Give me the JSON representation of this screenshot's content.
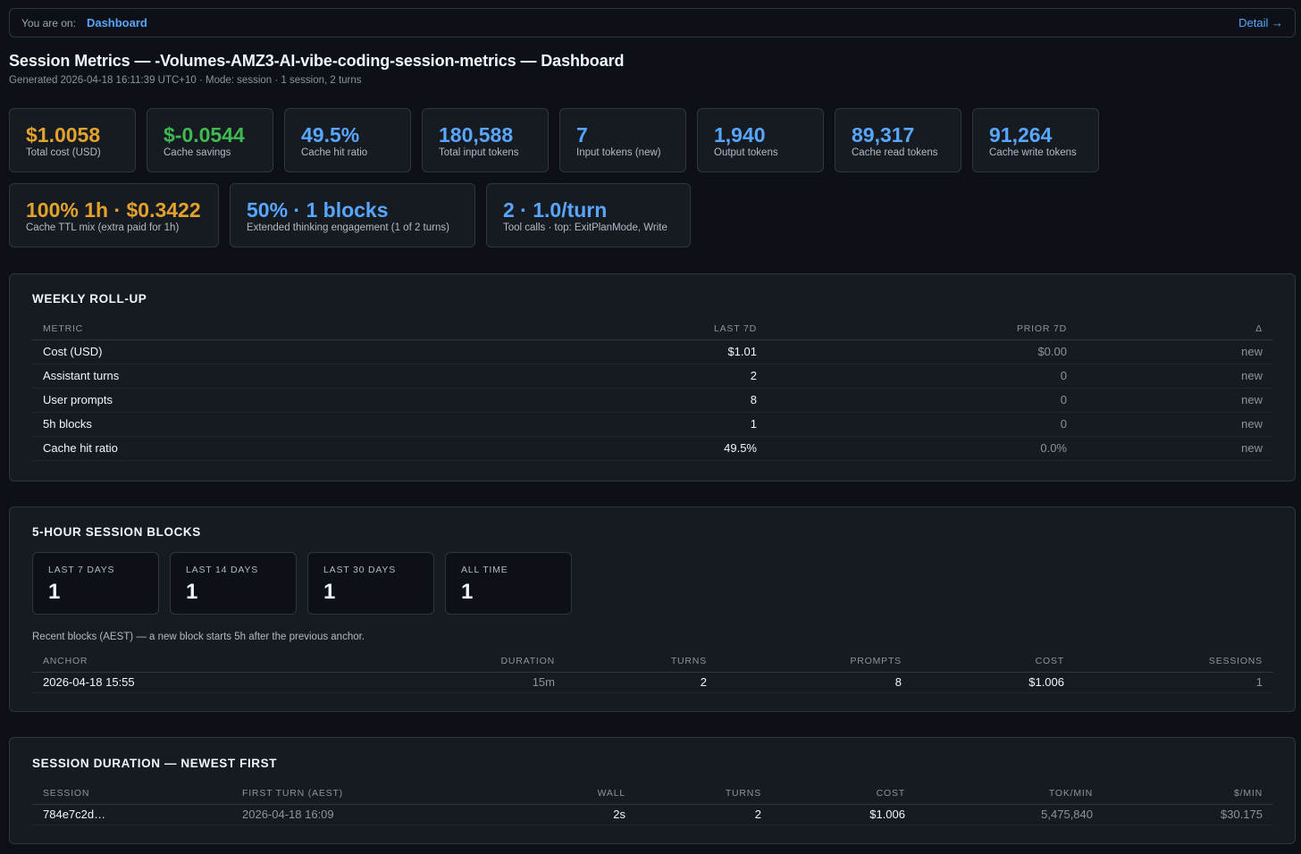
{
  "topbar": {
    "you_are_on": "You are on:",
    "crumb": "Dashboard",
    "detail": "Detail →"
  },
  "header": {
    "title": "Session Metrics — -Volumes-AMZ3-AI-vibe-coding-session-metrics — Dashboard",
    "subtitle": "Generated 2026-04-18 16:11:39 UTC+10 · Mode: session · 1 session, 2 turns"
  },
  "stats": [
    {
      "value": "$1.0058",
      "label": "Total cost (USD)",
      "color": "#e3a22e"
    },
    {
      "value": "$-0.0544",
      "label": "Cache savings",
      "color": "#3fb950"
    },
    {
      "value": "49.5%",
      "label": "Cache hit ratio",
      "color": "#58a6ff"
    },
    {
      "value": "180,588",
      "label": "Total input tokens",
      "color": "#58a6ff"
    },
    {
      "value": "7",
      "label": "Input tokens (new)",
      "color": "#58a6ff"
    },
    {
      "value": "1,940",
      "label": "Output tokens",
      "color": "#58a6ff"
    },
    {
      "value": "89,317",
      "label": "Cache read tokens",
      "color": "#58a6ff"
    },
    {
      "value": "91,264",
      "label": "Cache write tokens",
      "color": "#58a6ff"
    }
  ],
  "stats2": [
    {
      "value": "100% 1h · $0.3422",
      "label": "Cache TTL mix (extra paid for 1h)",
      "color": "#e3a22e"
    },
    {
      "value": "50% · 1 blocks",
      "label": "Extended thinking engagement (1 of 2 turns)",
      "color": "#58a6ff"
    },
    {
      "value": "2 · 1.0/turn",
      "label": "Tool calls · top: ExitPlanMode, Write",
      "color": "#58a6ff"
    }
  ],
  "weekly": {
    "title": "WEEKLY ROLL-UP",
    "headers": [
      "METRIC",
      "LAST 7D",
      "PRIOR 7D",
      "Δ"
    ],
    "rows": [
      [
        "Cost (USD)",
        "$1.01",
        "$0.00",
        "new"
      ],
      [
        "Assistant turns",
        "2",
        "0",
        "new"
      ],
      [
        "User prompts",
        "8",
        "0",
        "new"
      ],
      [
        "5h blocks",
        "1",
        "0",
        "new"
      ],
      [
        "Cache hit ratio",
        "49.5%",
        "0.0%",
        "new"
      ]
    ]
  },
  "blocks": {
    "title": "5-HOUR SESSION BLOCKS",
    "cards": [
      {
        "label": "LAST 7 DAYS",
        "value": "1"
      },
      {
        "label": "LAST 14 DAYS",
        "value": "1"
      },
      {
        "label": "LAST 30 DAYS",
        "value": "1"
      },
      {
        "label": "ALL TIME",
        "value": "1"
      }
    ],
    "note": "Recent blocks (AEST) — a new block starts 5h after the previous anchor.",
    "headers": [
      "ANCHOR",
      "DURATION",
      "TURNS",
      "PROMPTS",
      "COST",
      "SESSIONS"
    ],
    "rows": [
      [
        "2026-04-18 15:55",
        "15m",
        "2",
        "8",
        "$1.006",
        "1"
      ]
    ]
  },
  "duration": {
    "title": "SESSION DURATION — NEWEST FIRST",
    "headers": [
      "SESSION",
      "FIRST TURN (AEST)",
      "WALL",
      "TURNS",
      "COST",
      "TOK/MIN",
      "$/MIN"
    ],
    "rows": [
      [
        "784e7c2d…",
        "2026-04-18 16:09",
        "2s",
        "2",
        "$1.006",
        "5,475,840",
        "$30.175"
      ]
    ]
  }
}
